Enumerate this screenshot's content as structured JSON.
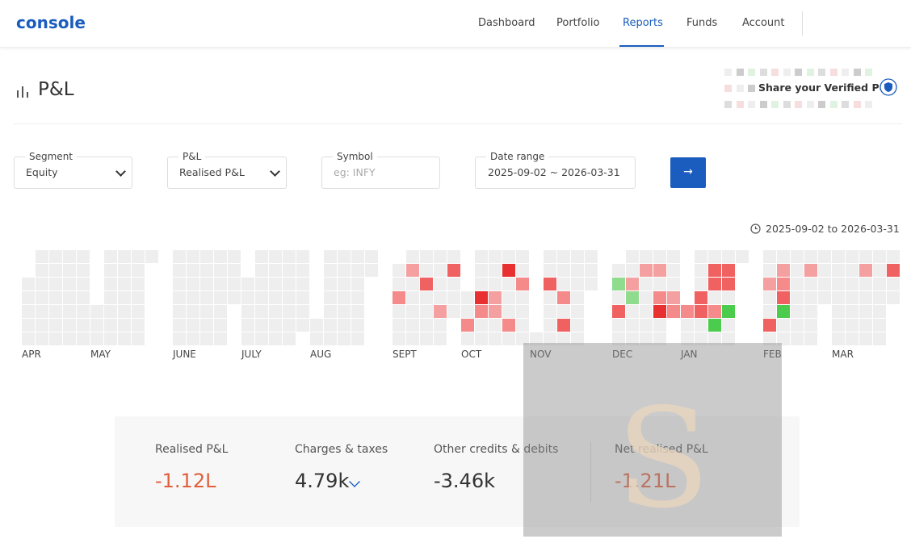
{
  "header": {
    "logo": "console",
    "nav": [
      "Dashboard",
      "Portfolio",
      "Reports",
      "Funds",
      "Account"
    ],
    "active": "Reports"
  },
  "page_title": "P&L",
  "share_label": "Share your Verified P&L",
  "filters": [
    {
      "label": "Segment",
      "value": "Equity"
    },
    {
      "label": "P&L",
      "value": "Realised P&L"
    },
    {
      "label": "Symbol",
      "placeholder": "eg: INFY"
    },
    {
      "label": "Date range",
      "value": "2025-09-02 ~ 2026-03-31"
    }
  ],
  "range_caption": "2025-09-02 to 2026-03-31",
  "months": [
    "APR",
    "MAY",
    "JUNE",
    "JULY",
    "AUG",
    "SEPT",
    "OCT",
    "NOV",
    "DEC",
    "JAN",
    "FEB",
    "MAR"
  ],
  "summary": [
    {
      "label": "Realised P&L",
      "value": "-1.12L"
    },
    {
      "label": "Charges & taxes",
      "value": "4.79k"
    },
    {
      "label": "Other credits & debits",
      "value": "-3.46k"
    },
    {
      "label": "Net realised P&L",
      "value": "-1.21L"
    }
  ],
  "overlay": {
    "letter": "S"
  }
}
